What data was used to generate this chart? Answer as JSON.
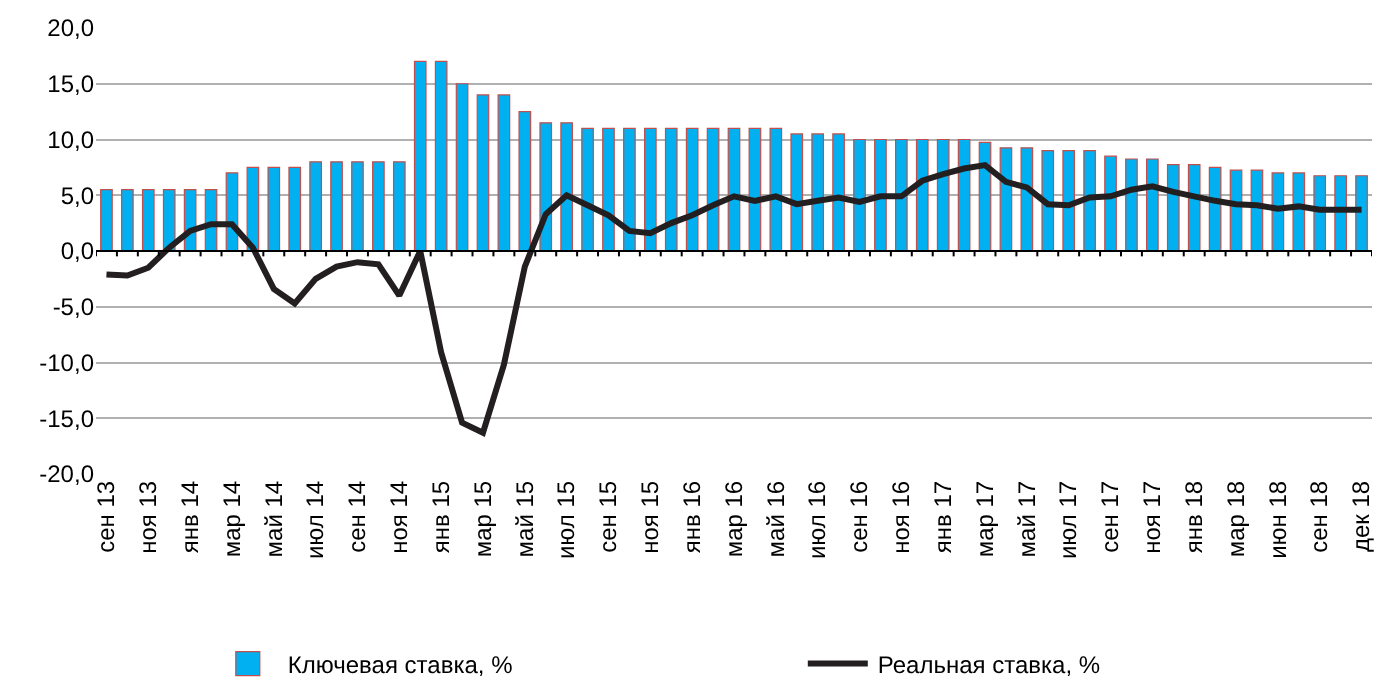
{
  "chart_data": {
    "type": "bar",
    "categories": [
      "сен 13",
      null,
      "ноя 13",
      null,
      "янв 14",
      null,
      "мар 14",
      null,
      "май 14",
      null,
      "июл 14",
      null,
      "сен 14",
      null,
      "ноя 14",
      null,
      "янв 15",
      null,
      "мар 15",
      null,
      "май 15",
      null,
      "июл 15",
      null,
      "сен 15",
      null,
      "ноя 15",
      null,
      "янв 16",
      null,
      "мар 16",
      null,
      "май 16",
      null,
      "июл 16",
      null,
      "сен 16",
      null,
      "ноя 16",
      null,
      "янв 17",
      null,
      "мар 17",
      null,
      "май 17",
      null,
      "июл 17",
      null,
      "сен 17",
      null,
      "ноя 17",
      null,
      "янв 18",
      null,
      "мар 18",
      null,
      "июн 18",
      null,
      "сен 18",
      null,
      "дек 18"
    ],
    "series": [
      {
        "name": "Ключевая ставка, %",
        "color": "#00b0f0",
        "values": [
          5.5,
          5.5,
          5.5,
          5.5,
          5.5,
          5.5,
          7.0,
          7.5,
          7.5,
          7.5,
          8.0,
          8.0,
          8.0,
          8.0,
          8.0,
          17,
          17,
          15,
          14,
          14,
          12.5,
          11.5,
          11.5,
          11,
          11,
          11,
          11,
          11,
          11,
          11,
          11,
          11,
          11,
          10.5,
          10.5,
          10.5,
          10,
          10,
          10,
          10,
          10,
          10,
          9.75,
          9.25,
          9.25,
          9,
          9,
          9,
          8.5,
          8.25,
          8.25,
          7.75,
          7.75,
          7.5,
          7.25,
          7.25,
          7.0,
          7.0,
          6.75,
          6.75,
          6.75
        ]
      },
      {
        "name": "Реальная ставка, %",
        "type": "line",
        "color": "#231f20",
        "values": [
          -2.1,
          -2.2,
          -1.5,
          0.3,
          1.8,
          2.4,
          2.4,
          0.3,
          -3.4,
          -4.7,
          -2.5,
          -1.4,
          -1.0,
          -1.2,
          -4.0,
          0.0,
          -9.1,
          -15.4,
          -16.3,
          -10.2,
          -1.4,
          3.3,
          5.0,
          4.1,
          3.2,
          1.8,
          1.6,
          2.5,
          3.2,
          4.1,
          4.9,
          4.5,
          4.9,
          4.2,
          4.5,
          4.8,
          4.4,
          4.9,
          4.9,
          6.3,
          6.9,
          7.4,
          7.7,
          6.2,
          5.7,
          4.2,
          4.1,
          4.8,
          4.9,
          5.5,
          5.8,
          5.3,
          4.9,
          4.5,
          4.2,
          4.1,
          3.8,
          4.0,
          3.7,
          3.7,
          3.7
        ]
      }
    ],
    "ylim": [
      -20,
      20
    ],
    "yticks": [
      {
        "value": -20,
        "label": "-20,0"
      },
      {
        "value": -15,
        "label": "-15,0"
      },
      {
        "value": -10,
        "label": "-10,0"
      },
      {
        "value": -5,
        "label": "-5,0"
      },
      {
        "value": 0,
        "label": "0,0"
      },
      {
        "value": 5,
        "label": "5,0"
      },
      {
        "value": 10,
        "label": "10,0"
      },
      {
        "value": 15,
        "label": "15,0"
      },
      {
        "value": 20,
        "label": "20,0"
      }
    ],
    "grid": "y",
    "legend": "bottom",
    "marker": "none",
    "line_style": "solid"
  }
}
